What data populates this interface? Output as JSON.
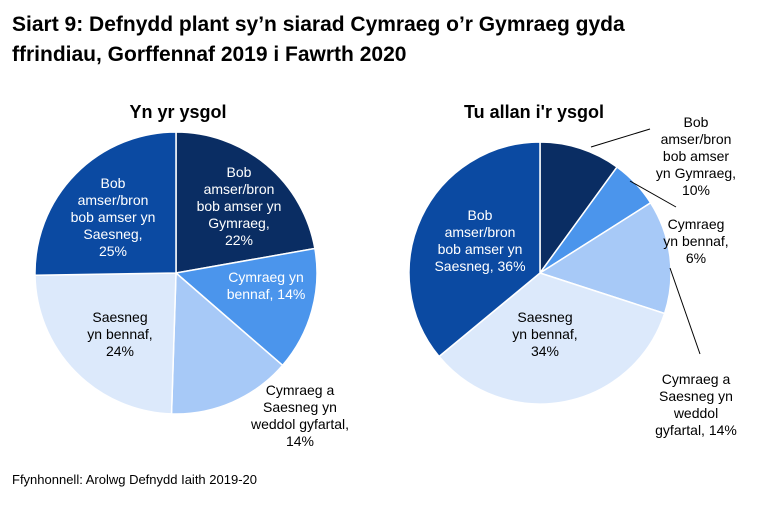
{
  "title_line1": "Siart 9: Defnydd plant sy’n siarad Cymraeg o’r Gymraeg gyda",
  "title_line2": "ffrindiau, Gorffennaf 2019 i Fawrth 2020",
  "source": "Ffynhonnell: Arolwg Defnydd Iaith 2019-20",
  "colors": {
    "always_welsh": "#0a2d63",
    "mostly_welsh": "#4b95ec",
    "equal": "#a7c9f7",
    "mostly_english": "#dce9fb",
    "always_english": "#0b4aa2"
  },
  "chart_data": [
    {
      "type": "pie",
      "title": "Yn yr ysgol",
      "slices": [
        {
          "key": "always_welsh",
          "value": 22,
          "label_lines": [
            "Bob",
            "amser/bron",
            "bob amser yn",
            "Gymraeg,",
            "22%"
          ]
        },
        {
          "key": "mostly_welsh",
          "value": 14,
          "label_lines": [
            "Cymraeg yn",
            "bennaf, 14%"
          ]
        },
        {
          "key": "equal",
          "value": 14,
          "label_lines": [
            "Cymraeg a",
            "Saesneg yn",
            "weddol gyfartal,",
            "14%"
          ]
        },
        {
          "key": "mostly_english",
          "value": 24,
          "label_lines": [
            "Saesneg",
            "yn bennaf,",
            "24%"
          ]
        },
        {
          "key": "always_english",
          "value": 25,
          "label_lines": [
            "Bob",
            "amser/bron",
            "bob amser yn",
            "Saesneg,",
            "25%"
          ]
        }
      ]
    },
    {
      "type": "pie",
      "title": "Tu allan i'r ysgol",
      "slices": [
        {
          "key": "always_welsh",
          "value": 10,
          "label_lines": [
            "Bob",
            "amser/bron",
            "bob amser",
            "yn Gymraeg,",
            "10%"
          ]
        },
        {
          "key": "mostly_welsh",
          "value": 6,
          "label_lines": [
            "Cymraeg",
            "yn bennaf,",
            "6%"
          ]
        },
        {
          "key": "equal",
          "value": 14,
          "label_lines": [
            "Cymraeg a",
            "Saesneg yn",
            "weddol",
            "gyfartal, 14%"
          ]
        },
        {
          "key": "mostly_english",
          "value": 34,
          "label_lines": [
            "Saesneg",
            "yn bennaf,",
            "34%"
          ]
        },
        {
          "key": "always_english",
          "value": 36,
          "label_lines": [
            "Bob",
            "amser/bron",
            "bob amser yn",
            "Saesneg, 36%"
          ]
        }
      ]
    }
  ]
}
